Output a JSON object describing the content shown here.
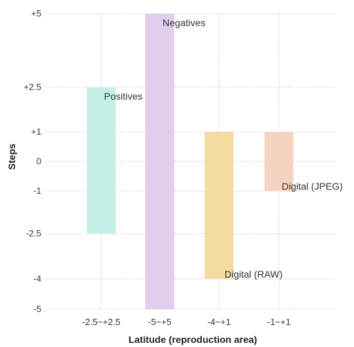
{
  "chart_data": {
    "type": "bar",
    "subtype": "floating-range",
    "title": "",
    "xlabel": "Latitude (reproduction area)",
    "ylabel": "Steps",
    "ylim": [
      -5,
      5
    ],
    "yticks": [
      5,
      2.5,
      1,
      0,
      -1,
      -2.5,
      -4,
      -5
    ],
    "ytick_labels": [
      "+5",
      "+2.5",
      "+1",
      "0",
      "-1",
      "-2.5",
      "-4",
      "-5"
    ],
    "grid": true,
    "bars": [
      {
        "category": "-2.5~+2.5",
        "label": "Positives",
        "low": -2.5,
        "high": 2.5,
        "color": "#c6efe8"
      },
      {
        "category": "-5~+5",
        "label": "Negatives",
        "low": -5,
        "high": 5,
        "color": "#e2cdee"
      },
      {
        "category": "-4~+1",
        "label": "Digital (RAW)",
        "low": -4,
        "high": 1,
        "color": "#f4dba2"
      },
      {
        "category": "-1~+1",
        "label": "Digital (JPEG)",
        "low": -1,
        "high": 1,
        "color": "#f6d3c0"
      }
    ]
  }
}
